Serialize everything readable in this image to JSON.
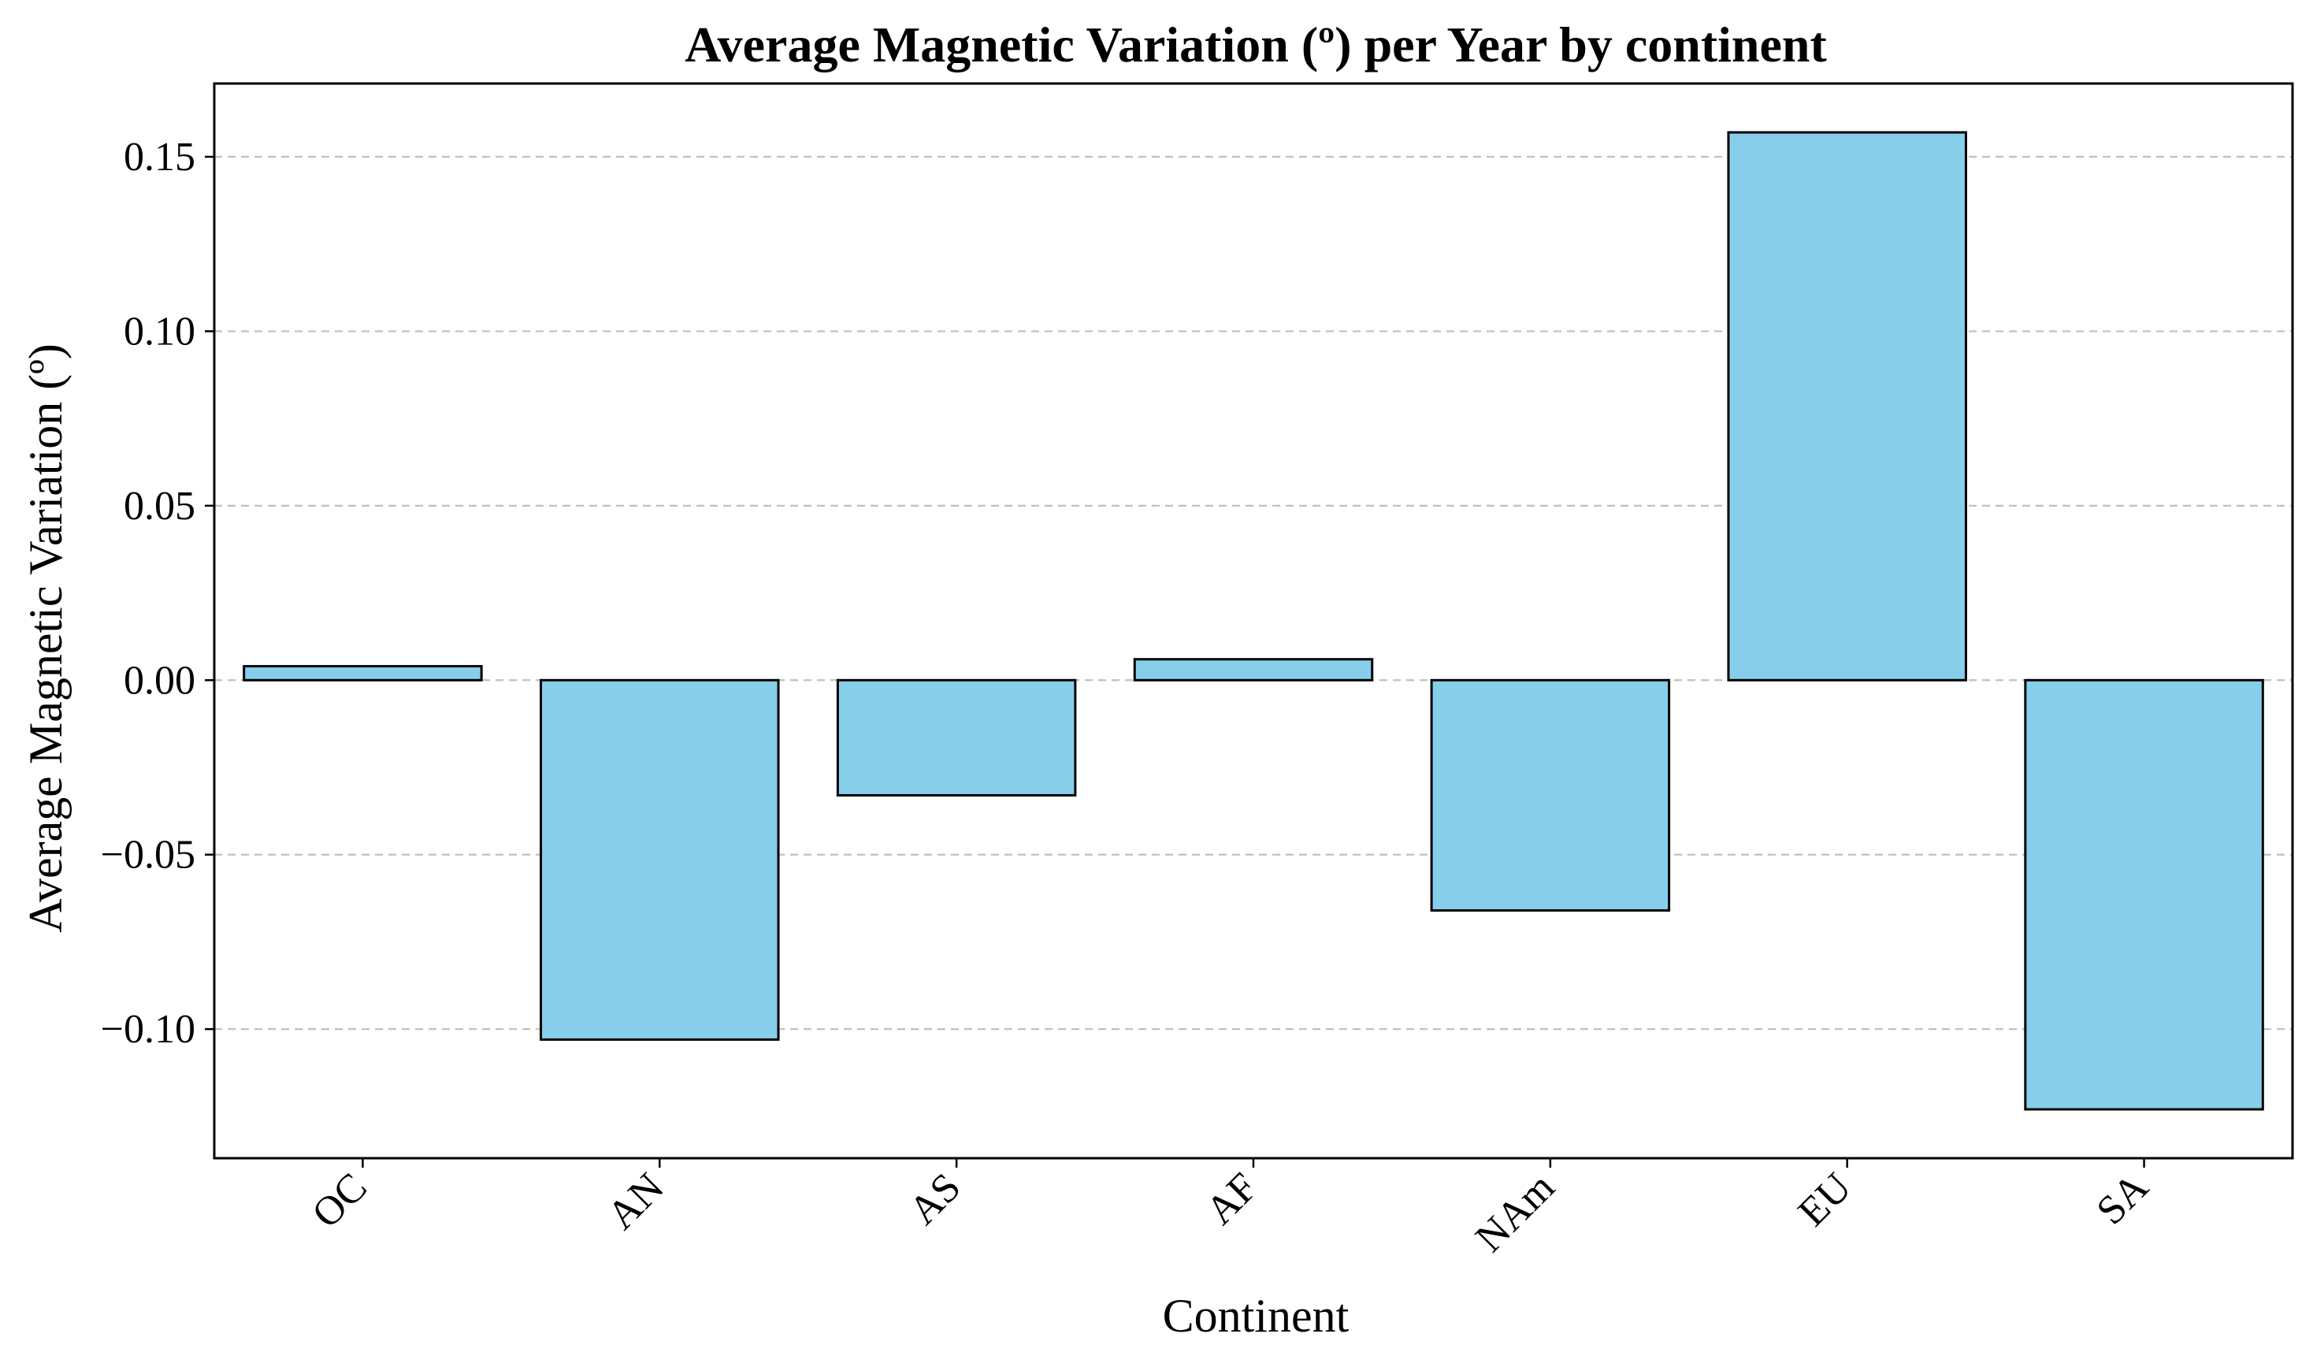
{
  "chart_data": {
    "type": "bar",
    "title": "Average Magnetic Variation (º) per Year by continent",
    "xlabel": "Continent",
    "ylabel": "Average Magnetic Variation (º)",
    "categories": [
      "OC",
      "AN",
      "AS",
      "AF",
      "NAm",
      "EU",
      "SA"
    ],
    "values": [
      0.004,
      -0.103,
      -0.033,
      0.006,
      -0.066,
      0.157,
      -0.123
    ],
    "ylim": [
      -0.137,
      0.171
    ],
    "yticks": [
      -0.1,
      -0.05,
      0.0,
      0.05,
      0.1,
      0.15
    ],
    "ytick_labels": [
      "−0.10",
      "−0.05",
      "0.00",
      "0.05",
      "0.10",
      "0.15"
    ],
    "grid": "y-dashed",
    "legend": "none",
    "colors": {
      "bar_fill": "#87CEEB",
      "bar_edge": "#000000",
      "grid": "#c0c0c0",
      "axis": "#000000"
    }
  }
}
